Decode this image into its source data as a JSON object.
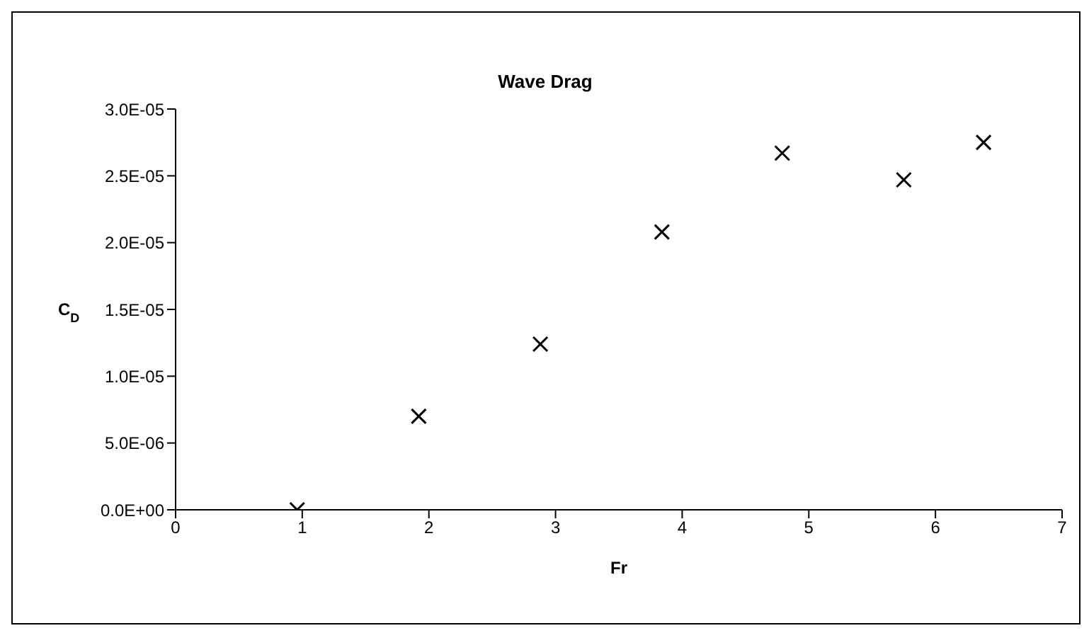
{
  "chart_data": {
    "type": "scatter",
    "title": "Wave Drag",
    "xlabel": "Fr",
    "ylabel": "C$_{D}$",
    "x": [
      0.96,
      1.92,
      2.88,
      3.84,
      4.79,
      5.75,
      6.38
    ],
    "values": [
      0,
      7e-06,
      1.24e-05,
      2.08e-05,
      2.67e-05,
      2.47e-05,
      2.75e-05
    ],
    "color": "#000000",
    "marker": "cross",
    "grid": false,
    "legend": false,
    "xlim": [
      0,
      7
    ],
    "xticks": [
      0,
      1,
      2,
      3,
      4,
      5,
      6,
      7
    ],
    "ylim": [
      0,
      3e-05
    ],
    "yticks": [
      {
        "value": 0,
        "label": "0.0E+00"
      },
      {
        "value": 5e-06,
        "label": "5.0E-06"
      },
      {
        "value": 1e-05,
        "label": "1.0E-05"
      },
      {
        "value": 1.5e-05,
        "label": "1.5E-05"
      },
      {
        "value": 2e-05,
        "label": "2.0E-05"
      },
      {
        "value": 2.5e-05,
        "label": "2.5E-05"
      },
      {
        "value": 3e-05,
        "label": "3.0E-05"
      }
    ]
  }
}
